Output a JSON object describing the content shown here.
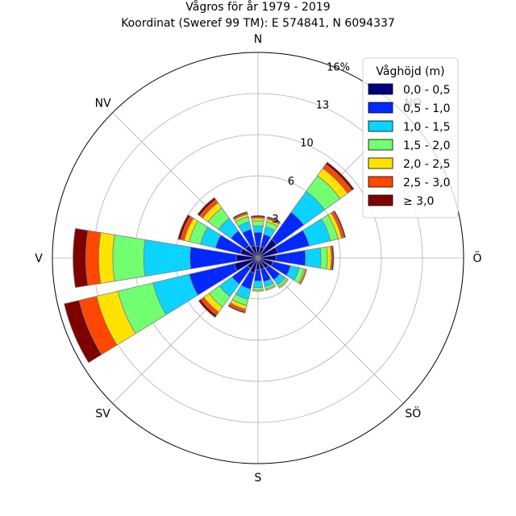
{
  "chart_data": {
    "type": "wind-rose",
    "title": "Vågros för år 1979 - 2019",
    "subtitle": "Koordinat (Sweref 99 TM): E 574841, N 6094337",
    "directions": [
      "N",
      "NO",
      "Ö",
      "SÖ",
      "S",
      "SV",
      "V",
      "NV"
    ],
    "radial_ticks": [
      "3",
      "6",
      "10",
      "13",
      "16%"
    ],
    "radial_tick_values": [
      3.2,
      6.4,
      9.6,
      12.8,
      16
    ],
    "rmax": 16,
    "legend_title": "Våghöjd (m)",
    "legend_placement": "top-right",
    "bins": [
      {
        "label": "0,0 - 0,5",
        "color": "#00007f"
      },
      {
        "label": "0,5 - 1,0",
        "color": "#0028ff"
      },
      {
        "label": "1,0 - 1,5",
        "color": "#0ad4ff"
      },
      {
        "label": "1,5 - 2,0",
        "color": "#72ff72"
      },
      {
        "label": "2,0 - 2,5",
        "color": "#ffe200"
      },
      {
        "label": "2,5 - 3,0",
        "color": "#ff4700"
      },
      {
        "label": "≥ 3,0",
        "color": "#7f0000"
      }
    ],
    "sectors": [
      {
        "angle": 0,
        "values": [
          0.9,
          1.1,
          0.5,
          0.4,
          0.2,
          0.1,
          0.1
        ]
      },
      {
        "angle": 22.5,
        "values": [
          0.9,
          1.0,
          0.6,
          0.4,
          0.2,
          0.1,
          0.1
        ]
      },
      {
        "angle": 45,
        "values": [
          1.8,
          2.6,
          2.0,
          1.5,
          0.7,
          0.4,
          0.2
        ]
      },
      {
        "angle": 67.5,
        "values": [
          1.6,
          2.5,
          1.7,
          0.6,
          0.3,
          0.2,
          0.1
        ]
      },
      {
        "angle": 90,
        "values": [
          1.4,
          2.3,
          1.2,
          0.5,
          0.3,
          0.1,
          0.1
        ]
      },
      {
        "angle": 112.5,
        "values": [
          1.2,
          1.4,
          0.7,
          0.4,
          0.1,
          0.1,
          0.0
        ]
      },
      {
        "angle": 135,
        "values": [
          1.0,
          1.1,
          0.5,
          0.2,
          0.1,
          0.0,
          0.0
        ]
      },
      {
        "angle": 157.5,
        "values": [
          0.9,
          1.0,
          0.4,
          0.2,
          0.1,
          0.0,
          0.0
        ]
      },
      {
        "angle": 180,
        "values": [
          0.9,
          0.9,
          0.5,
          0.2,
          0.1,
          0.0,
          0.0
        ]
      },
      {
        "angle": 202.5,
        "values": [
          1.2,
          1.3,
          0.8,
          0.5,
          0.3,
          0.2,
          0.1
        ]
      },
      {
        "angle": 225,
        "values": [
          1.0,
          1.5,
          1.2,
          1.0,
          0.5,
          0.3,
          0.2
        ]
      },
      {
        "angle": 247.5,
        "values": [
          1.9,
          3.6,
          2.9,
          2.8,
          1.7,
          1.4,
          1.2
        ]
      },
      {
        "angle": 270,
        "values": [
          1.7,
          3.6,
          3.6,
          2.4,
          1.1,
          1.0,
          1.0
        ]
      },
      {
        "angle": 292.5,
        "values": [
          1.4,
          2.0,
          1.2,
          0.9,
          0.4,
          0.3,
          0.2
        ]
      },
      {
        "angle": 315,
        "values": [
          1.2,
          1.4,
          1.2,
          1.0,
          0.5,
          0.3,
          0.2
        ]
      },
      {
        "angle": 337.5,
        "values": [
          1.0,
          1.3,
          0.6,
          0.4,
          0.2,
          0.1,
          0.1
        ]
      }
    ]
  }
}
